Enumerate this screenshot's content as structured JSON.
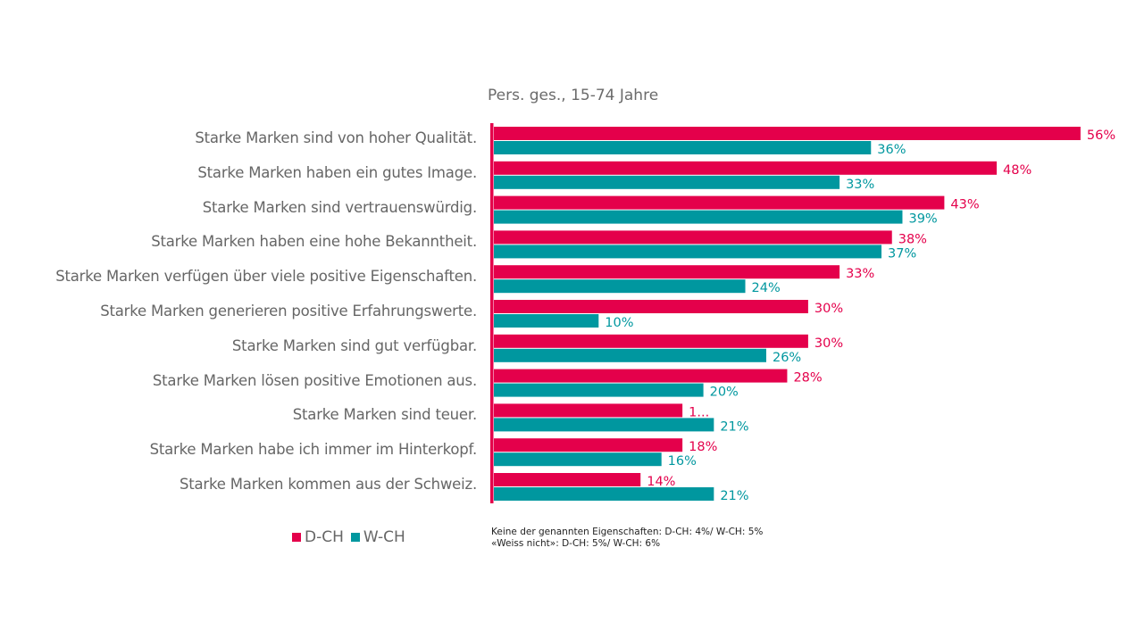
{
  "colors": {
    "d_ch": "#E4004B",
    "w_ch": "#00979F",
    "axis": "#E4004B"
  },
  "chart_data": {
    "type": "bar",
    "orientation": "horizontal",
    "title": "",
    "subtitle": "Pers. ges., 15-74 Jahre",
    "xlabel": "",
    "ylabel": "",
    "xlim": [
      0,
      60
    ],
    "grid": false,
    "legend_position": "bottom-left",
    "categories": [
      "Starke Marken sind von hoher Qualität.",
      "Starke Marken haben ein gutes Image.",
      "Starke Marken sind vertrauenswürdig.",
      "Starke Marken haben eine hohe Bekanntheit.",
      "Starke Marken verfügen über viele positive Eigenschaften.",
      "Starke Marken generieren positive Erfahrungswerte.",
      "Starke Marken sind gut verfügbar.",
      "Starke Marken lösen positive Emotionen aus.",
      "Starke Marken sind teuer.",
      "Starke Marken habe ich immer im Hinterkopf.",
      "Starke Marken kommen aus der Schweiz."
    ],
    "series": [
      {
        "name": "D-CH",
        "color": "#E4004B",
        "values": [
          56,
          48,
          43,
          38,
          33,
          30,
          30,
          28,
          18,
          18,
          14
        ],
        "labels": [
          "56%",
          "48%",
          "43%",
          "38%",
          "33%",
          "30%",
          "30%",
          "28%",
          "1...",
          "18%",
          "14%"
        ]
      },
      {
        "name": "W-CH",
        "color": "#00979F",
        "values": [
          36,
          33,
          39,
          37,
          24,
          10,
          26,
          20,
          21,
          16,
          21
        ],
        "labels": [
          "36%",
          "33%",
          "39%",
          "37%",
          "24%",
          "10%",
          "26%",
          "20%",
          "21%",
          "16%",
          "21%"
        ]
      }
    ],
    "notes": [
      "Keine der genannten Eigenschaften: D-CH: 4%/ W-CH: 5%",
      "«Weiss nicht»: D-CH: 5%/ W-CH: 6%"
    ]
  }
}
